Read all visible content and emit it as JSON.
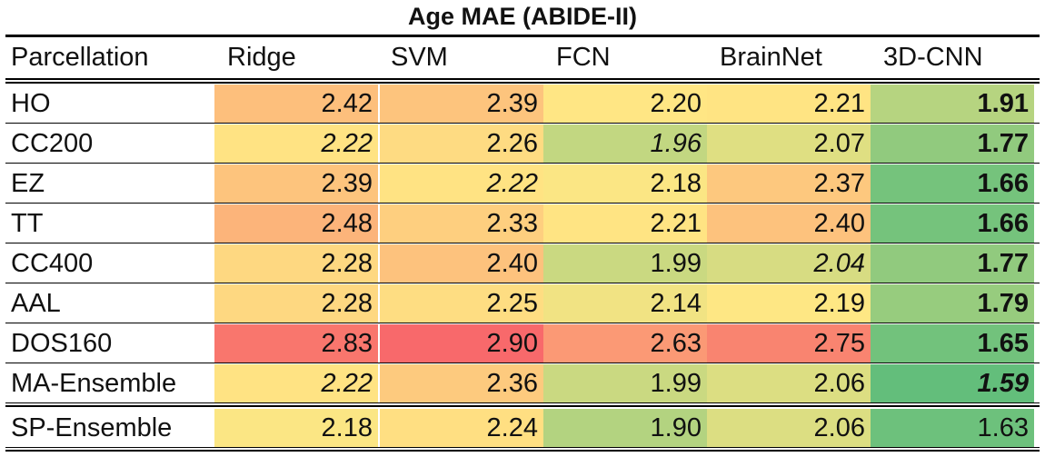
{
  "chart_data": {
    "type": "table",
    "title": "Age MAE (ABIDE-II)",
    "row_header": "Parcellation",
    "columns": [
      "Ridge",
      "SVM",
      "FCN",
      "BrainNet",
      "3D-CNN"
    ],
    "rows": [
      {
        "name": "HO",
        "values": [
          "2.42",
          "2.39",
          "2.20",
          "2.21",
          "1.91"
        ],
        "style": [
          "n",
          "n",
          "n",
          "n",
          "b"
        ]
      },
      {
        "name": "CC200",
        "values": [
          "2.22",
          "2.26",
          "1.96",
          "2.07",
          "1.77"
        ],
        "style": [
          "i",
          "n",
          "i",
          "n",
          "b"
        ]
      },
      {
        "name": "EZ",
        "values": [
          "2.39",
          "2.22",
          "2.18",
          "2.37",
          "1.66"
        ],
        "style": [
          "n",
          "i",
          "n",
          "n",
          "b"
        ]
      },
      {
        "name": "TT",
        "values": [
          "2.48",
          "2.33",
          "2.21",
          "2.40",
          "1.66"
        ],
        "style": [
          "n",
          "n",
          "n",
          "n",
          "b"
        ]
      },
      {
        "name": "CC400",
        "values": [
          "2.28",
          "2.40",
          "1.99",
          "2.04",
          "1.77"
        ],
        "style": [
          "n",
          "n",
          "n",
          "i",
          "b"
        ]
      },
      {
        "name": "AAL",
        "values": [
          "2.28",
          "2.25",
          "2.14",
          "2.19",
          "1.79"
        ],
        "style": [
          "n",
          "n",
          "n",
          "n",
          "b"
        ]
      },
      {
        "name": "DOS160",
        "values": [
          "2.83",
          "2.90",
          "2.63",
          "2.75",
          "1.65"
        ],
        "style": [
          "n",
          "n",
          "n",
          "n",
          "b"
        ]
      },
      {
        "name": "MA-Ensemble",
        "values": [
          "2.22",
          "2.36",
          "1.99",
          "2.06",
          "1.59"
        ],
        "style": [
          "i",
          "n",
          "n",
          "n",
          "bi"
        ]
      },
      {
        "name": "SP-Ensemble",
        "values": [
          "2.18",
          "2.24",
          "1.90",
          "2.06",
          "1.63"
        ],
        "style": [
          "n",
          "n",
          "n",
          "n",
          "n"
        ]
      }
    ],
    "color_scale": {
      "min": 1.59,
      "max": 2.9,
      "low_color": "#63be7b",
      "mid_color": "#ffe784",
      "high_color": "#f8696b"
    }
  }
}
